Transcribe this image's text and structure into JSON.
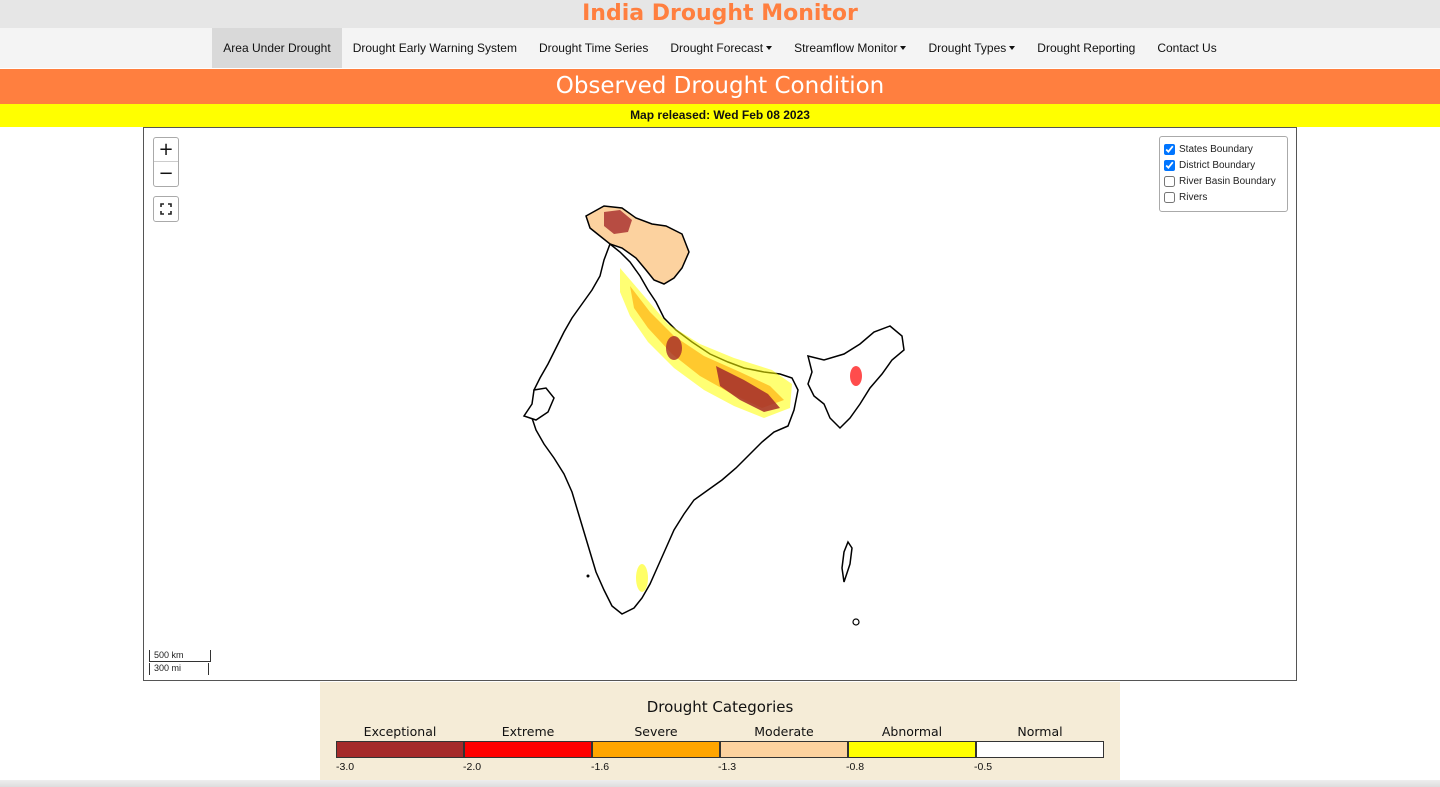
{
  "site": {
    "title": "India Drought Monitor"
  },
  "nav": {
    "items": [
      {
        "label": "Area Under Drought",
        "active": true,
        "dropdown": false
      },
      {
        "label": "Drought Early Warning System",
        "active": false,
        "dropdown": false
      },
      {
        "label": "Drought Time Series",
        "active": false,
        "dropdown": false
      },
      {
        "label": "Drought Forecast",
        "active": false,
        "dropdown": true
      },
      {
        "label": "Streamflow Monitor",
        "active": false,
        "dropdown": true
      },
      {
        "label": "Drought Types",
        "active": false,
        "dropdown": true
      },
      {
        "label": "Drought Reporting",
        "active": false,
        "dropdown": false
      },
      {
        "label": "Contact Us",
        "active": false,
        "dropdown": false
      }
    ]
  },
  "banner": {
    "title": "Observed Drought Condition"
  },
  "release": {
    "text": "Map released: Wed Feb 08 2023"
  },
  "map": {
    "zoom_in": "+",
    "zoom_out": "−",
    "layers": [
      {
        "label": "States Boundary",
        "checked": true
      },
      {
        "label": "District Boundary",
        "checked": true
      },
      {
        "label": "River Basin Boundary",
        "checked": false
      },
      {
        "label": "Rivers",
        "checked": false
      }
    ],
    "scale": {
      "km": "500 km",
      "mi": "300 mi"
    }
  },
  "legend": {
    "title": "Drought Categories",
    "categories": [
      {
        "label": "Exceptional",
        "color": "#a52a2a"
      },
      {
        "label": "Extreme",
        "color": "#ff0000"
      },
      {
        "label": "Severe",
        "color": "#ffa500"
      },
      {
        "label": "Moderate",
        "color": "#fcd29f"
      },
      {
        "label": "Abnormal",
        "color": "#ffff00"
      },
      {
        "label": "Normal",
        "color": "#ffffff"
      }
    ],
    "breaks": [
      "-3.0",
      "-2.0",
      "-1.6",
      "-1.3",
      "-0.8",
      "-0.5"
    ]
  },
  "colors": {
    "accent": "#ff7f3f",
    "release_bg": "#ffff00",
    "legend_bg": "#f5ecd7"
  }
}
